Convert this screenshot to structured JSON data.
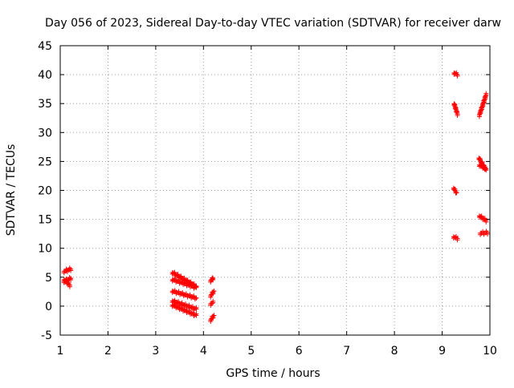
{
  "chart_data": {
    "type": "scatter",
    "title": "Day 056 of 2023, Sidereal Day-to-day VTEC variation (SDTVAR) for receiver darw",
    "xlabel": "GPS time / hours",
    "ylabel": "SDTVAR / TECUs",
    "xlim": [
      1,
      10
    ],
    "ylim": [
      -5,
      45
    ],
    "x_ticks": [
      "1",
      "2",
      "3",
      "4",
      "5",
      "6",
      "7",
      "8",
      "9",
      "10"
    ],
    "y_ticks": [
      "-5",
      "0",
      "5",
      "10",
      "15",
      "20",
      "25",
      "30",
      "35",
      "40",
      "45"
    ],
    "grid": true,
    "marker": "plus",
    "point_color": "#ff0000",
    "segments": [
      {
        "x0": 1.08,
        "y0": 6.0,
        "x1": 1.22,
        "y1": 6.4
      },
      {
        "x0": 1.08,
        "y0": 4.3,
        "x1": 1.22,
        "y1": 4.8
      },
      {
        "x0": 1.08,
        "y0": 4.6,
        "x1": 1.2,
        "y1": 3.6
      },
      {
        "x0": 3.35,
        "y0": 5.8,
        "x1": 3.85,
        "y1": 3.4
      },
      {
        "x0": 3.35,
        "y0": 4.6,
        "x1": 3.85,
        "y1": 3.2
      },
      {
        "x0": 3.35,
        "y0": 2.6,
        "x1": 3.85,
        "y1": 1.4
      },
      {
        "x0": 3.35,
        "y0": 0.9,
        "x1": 3.85,
        "y1": -0.5
      },
      {
        "x0": 3.35,
        "y0": 0.2,
        "x1": 3.85,
        "y1": -1.6
      },
      {
        "x0": 4.15,
        "y0": 4.4,
        "x1": 4.2,
        "y1": 4.8
      },
      {
        "x0": 4.15,
        "y0": 1.8,
        "x1": 4.22,
        "y1": 2.6
      },
      {
        "x0": 4.15,
        "y0": 0.4,
        "x1": 4.2,
        "y1": 0.6
      },
      {
        "x0": 4.15,
        "y0": -2.4,
        "x1": 4.22,
        "y1": -1.6
      },
      {
        "x0": 9.25,
        "y0": 40.3,
        "x1": 9.32,
        "y1": 40.0
      },
      {
        "x0": 9.25,
        "y0": 35.0,
        "x1": 9.32,
        "y1": 33.2
      },
      {
        "x0": 9.24,
        "y0": 20.4,
        "x1": 9.3,
        "y1": 19.6
      },
      {
        "x0": 9.24,
        "y0": 12.0,
        "x1": 9.32,
        "y1": 11.7
      },
      {
        "x0": 9.78,
        "y0": 33.0,
        "x1": 9.92,
        "y1": 36.5
      },
      {
        "x0": 9.77,
        "y0": 25.6,
        "x1": 9.92,
        "y1": 23.5
      },
      {
        "x0": 9.78,
        "y0": 24.4,
        "x1": 9.9,
        "y1": 23.8
      },
      {
        "x0": 9.78,
        "y0": 15.6,
        "x1": 9.92,
        "y1": 14.8
      },
      {
        "x0": 9.8,
        "y0": 12.6,
        "x1": 9.95,
        "y1": 12.7
      }
    ]
  }
}
